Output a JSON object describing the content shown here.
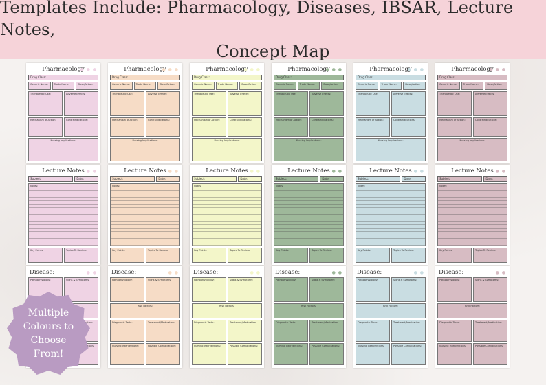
{
  "banner": {
    "line1": "Templates Include: Pharmacology, Diseases, IBSAR, Lecture Notes,",
    "line2": "Concept Map"
  },
  "badge": {
    "line1": "Multiple",
    "line2": "Colours to",
    "line3": "Choose",
    "line4": "From!"
  },
  "colors": [
    "#efd3e4",
    "#f6dcc6",
    "#f3f6c9",
    "#9eb89a",
    "#c9dde2",
    "#d7bcc3"
  ],
  "pharmacology": {
    "title": "Pharmacology",
    "drug_class": "Drug Class:",
    "generic_name": "Generic Name:",
    "trade_name": "Trade Name:",
    "dose_action": "Dose/Action:",
    "therapeutic_use": "Therapeutic Use:",
    "adverse_effects": "Adverse Effects:",
    "mechanism": "Mechanism of Action:",
    "contraindications": "Contraindications:",
    "nursing": "Nursing Implications:"
  },
  "lecture": {
    "title": "Lecture Notes",
    "subject": "Subject:",
    "date": "Date:",
    "notes": "Notes:",
    "key_points": "Key Points:",
    "topics_review": "Topics To Review:"
  },
  "disease": {
    "title": "Disease:",
    "patho": "Pathophysiology:",
    "signs": "Signs & Symptoms:",
    "risk": "Risk Factors:",
    "diagnostic": "Diagnostic Tests:",
    "treatment": "Treatment/Medication:",
    "nursing": "Nursing Interventions:",
    "complications": "Possible Complications:"
  }
}
